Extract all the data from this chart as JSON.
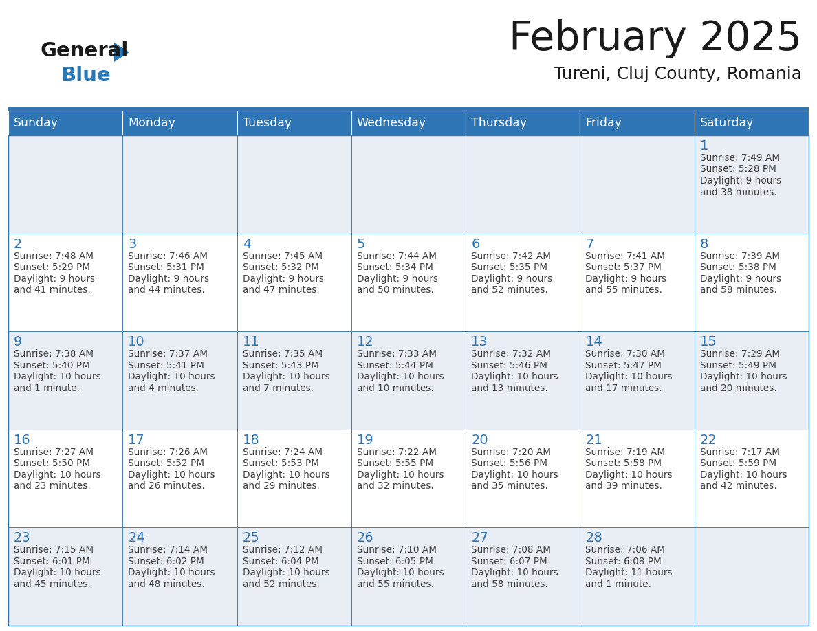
{
  "title": "February 2025",
  "subtitle": "Tureni, Cluj County, Romania",
  "days_of_week": [
    "Sunday",
    "Monday",
    "Tuesday",
    "Wednesday",
    "Thursday",
    "Friday",
    "Saturday"
  ],
  "header_bg": "#2e75b6",
  "header_text": "#ffffff",
  "cell_bg_odd": "#e9eef4",
  "cell_bg_even": "#ffffff",
  "border_color": "#2e75b6",
  "day_number_color": "#2e75b6",
  "info_text_color": "#404040",
  "title_color": "#1a1a1a",
  "subtitle_color": "#1a1a1a",
  "logo_general_color": "#1a1a1a",
  "logo_blue_color": "#2878b8",
  "logo_triangle_color": "#2878b8",
  "calendar_data": [
    [
      null,
      null,
      null,
      null,
      null,
      null,
      {
        "day": 1,
        "sunrise": "7:49 AM",
        "sunset": "5:28 PM",
        "daylight": "9 hours and 38 minutes."
      }
    ],
    [
      {
        "day": 2,
        "sunrise": "7:48 AM",
        "sunset": "5:29 PM",
        "daylight": "9 hours and 41 minutes."
      },
      {
        "day": 3,
        "sunrise": "7:46 AM",
        "sunset": "5:31 PM",
        "daylight": "9 hours and 44 minutes."
      },
      {
        "day": 4,
        "sunrise": "7:45 AM",
        "sunset": "5:32 PM",
        "daylight": "9 hours and 47 minutes."
      },
      {
        "day": 5,
        "sunrise": "7:44 AM",
        "sunset": "5:34 PM",
        "daylight": "9 hours and 50 minutes."
      },
      {
        "day": 6,
        "sunrise": "7:42 AM",
        "sunset": "5:35 PM",
        "daylight": "9 hours and 52 minutes."
      },
      {
        "day": 7,
        "sunrise": "7:41 AM",
        "sunset": "5:37 PM",
        "daylight": "9 hours and 55 minutes."
      },
      {
        "day": 8,
        "sunrise": "7:39 AM",
        "sunset": "5:38 PM",
        "daylight": "9 hours and 58 minutes."
      }
    ],
    [
      {
        "day": 9,
        "sunrise": "7:38 AM",
        "sunset": "5:40 PM",
        "daylight": "10 hours and 1 minute."
      },
      {
        "day": 10,
        "sunrise": "7:37 AM",
        "sunset": "5:41 PM",
        "daylight": "10 hours and 4 minutes."
      },
      {
        "day": 11,
        "sunrise": "7:35 AM",
        "sunset": "5:43 PM",
        "daylight": "10 hours and 7 minutes."
      },
      {
        "day": 12,
        "sunrise": "7:33 AM",
        "sunset": "5:44 PM",
        "daylight": "10 hours and 10 minutes."
      },
      {
        "day": 13,
        "sunrise": "7:32 AM",
        "sunset": "5:46 PM",
        "daylight": "10 hours and 13 minutes."
      },
      {
        "day": 14,
        "sunrise": "7:30 AM",
        "sunset": "5:47 PM",
        "daylight": "10 hours and 17 minutes."
      },
      {
        "day": 15,
        "sunrise": "7:29 AM",
        "sunset": "5:49 PM",
        "daylight": "10 hours and 20 minutes."
      }
    ],
    [
      {
        "day": 16,
        "sunrise": "7:27 AM",
        "sunset": "5:50 PM",
        "daylight": "10 hours and 23 minutes."
      },
      {
        "day": 17,
        "sunrise": "7:26 AM",
        "sunset": "5:52 PM",
        "daylight": "10 hours and 26 minutes."
      },
      {
        "day": 18,
        "sunrise": "7:24 AM",
        "sunset": "5:53 PM",
        "daylight": "10 hours and 29 minutes."
      },
      {
        "day": 19,
        "sunrise": "7:22 AM",
        "sunset": "5:55 PM",
        "daylight": "10 hours and 32 minutes."
      },
      {
        "day": 20,
        "sunrise": "7:20 AM",
        "sunset": "5:56 PM",
        "daylight": "10 hours and 35 minutes."
      },
      {
        "day": 21,
        "sunrise": "7:19 AM",
        "sunset": "5:58 PM",
        "daylight": "10 hours and 39 minutes."
      },
      {
        "day": 22,
        "sunrise": "7:17 AM",
        "sunset": "5:59 PM",
        "daylight": "10 hours and 42 minutes."
      }
    ],
    [
      {
        "day": 23,
        "sunrise": "7:15 AM",
        "sunset": "6:01 PM",
        "daylight": "10 hours and 45 minutes."
      },
      {
        "day": 24,
        "sunrise": "7:14 AM",
        "sunset": "6:02 PM",
        "daylight": "10 hours and 48 minutes."
      },
      {
        "day": 25,
        "sunrise": "7:12 AM",
        "sunset": "6:04 PM",
        "daylight": "10 hours and 52 minutes."
      },
      {
        "day": 26,
        "sunrise": "7:10 AM",
        "sunset": "6:05 PM",
        "daylight": "10 hours and 55 minutes."
      },
      {
        "day": 27,
        "sunrise": "7:08 AM",
        "sunset": "6:07 PM",
        "daylight": "10 hours and 58 minutes."
      },
      {
        "day": 28,
        "sunrise": "7:06 AM",
        "sunset": "6:08 PM",
        "daylight": "11 hours and 1 minute."
      },
      null
    ]
  ],
  "figsize": [
    11.88,
    9.18
  ],
  "dpi": 100
}
